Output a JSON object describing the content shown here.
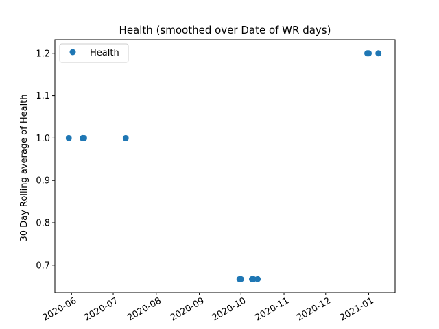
{
  "chart_data": {
    "type": "scatter",
    "title": "Health  (smoothed over Date of WR days)",
    "xlabel": "",
    "ylabel": "30 Day Rolling average of Health",
    "x_type": "date",
    "xlim": [
      "2020-05-20",
      "2021-01-20"
    ],
    "ylim": [
      0.635,
      1.232
    ],
    "x_ticks": [
      "2020-06-01",
      "2020-07-01",
      "2020-08-01",
      "2020-09-01",
      "2020-10-01",
      "2020-11-01",
      "2020-12-01",
      "2021-01-01"
    ],
    "x_tick_labels": [
      "2020-06",
      "2020-07",
      "2020-08",
      "2020-09",
      "2020-10",
      "2020-11",
      "2020-12",
      "2021-01"
    ],
    "y_ticks": [
      0.7,
      0.8,
      0.9,
      1.0,
      1.1,
      1.2
    ],
    "y_tick_labels": [
      "0.7",
      "0.8",
      "0.9",
      "1.0",
      "1.1",
      "1.2"
    ],
    "grid": false,
    "legend": {
      "placement": "top-left",
      "entries": [
        "Health"
      ]
    },
    "series": [
      {
        "name": "Health",
        "color": "#1f77b4",
        "points": [
          {
            "x": "2020-05-30",
            "y": 1.0
          },
          {
            "x": "2020-06-09",
            "y": 1.0
          },
          {
            "x": "2020-06-10",
            "y": 1.0
          },
          {
            "x": "2020-07-10",
            "y": 1.0
          },
          {
            "x": "2020-09-30",
            "y": 0.667
          },
          {
            "x": "2020-10-01",
            "y": 0.667
          },
          {
            "x": "2020-10-09",
            "y": 0.667
          },
          {
            "x": "2020-10-10",
            "y": 0.667
          },
          {
            "x": "2020-10-13",
            "y": 0.667
          },
          {
            "x": "2020-12-31",
            "y": 1.2
          },
          {
            "x": "2021-01-01",
            "y": 1.2
          },
          {
            "x": "2021-01-08",
            "y": 1.2
          }
        ]
      }
    ]
  }
}
